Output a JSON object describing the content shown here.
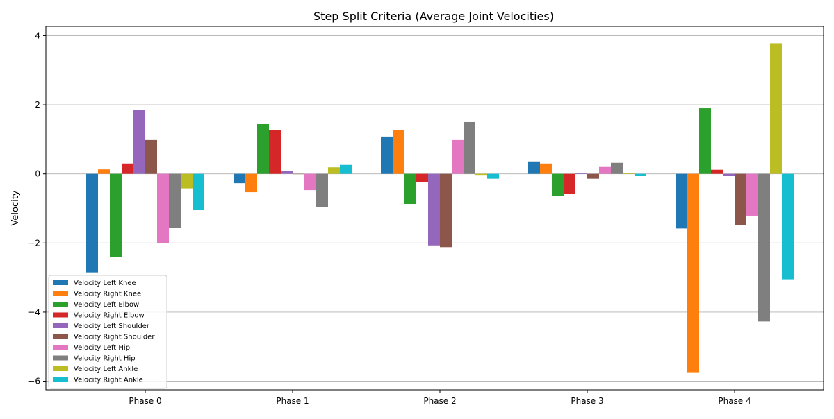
{
  "chart_data": {
    "type": "bar",
    "title": "Step Split Criteria (Average Joint Velocities)",
    "xlabel": "",
    "ylabel": "Velocity",
    "ylim": [
      -6.25,
      4.27
    ],
    "yticks": [
      -6,
      -4,
      -2,
      0,
      2,
      4
    ],
    "ytick_labels": [
      "−6",
      "−4",
      "−2",
      "0",
      "2",
      "4"
    ],
    "grid": "horizontal",
    "legend_placement": "lower-left",
    "categories": [
      "Phase 0",
      "Phase 1",
      "Phase 2",
      "Phase 3",
      "Phase 4"
    ],
    "series": [
      {
        "name": "Velocity Left Knee",
        "color": "#1f77b4",
        "values": [
          -2.85,
          -0.27,
          1.08,
          0.36,
          -1.58
        ]
      },
      {
        "name": "Velocity Right Knee",
        "color": "#ff7f0e",
        "values": [
          0.13,
          -0.53,
          1.26,
          0.3,
          -5.74
        ]
      },
      {
        "name": "Velocity Left Elbow",
        "color": "#2ca02c",
        "values": [
          -2.4,
          1.44,
          -0.87,
          -0.63,
          1.9
        ]
      },
      {
        "name": "Velocity Right Elbow",
        "color": "#d62728",
        "values": [
          0.3,
          1.26,
          -0.23,
          -0.57,
          0.12
        ]
      },
      {
        "name": "Velocity Left Shoulder",
        "color": "#9467bd",
        "values": [
          1.86,
          0.08,
          -2.07,
          0.03,
          -0.05
        ]
      },
      {
        "name": "Velocity Right Shoulder",
        "color": "#8c564b",
        "values": [
          0.98,
          0.0,
          -2.12,
          -0.14,
          -1.49
        ]
      },
      {
        "name": "Velocity Left Hip",
        "color": "#e377c2",
        "values": [
          -2.0,
          -0.47,
          0.98,
          0.2,
          -1.21
        ]
      },
      {
        "name": "Velocity Right Hip",
        "color": "#7f7f7f",
        "values": [
          -1.57,
          -0.95,
          1.5,
          0.32,
          -4.27
        ]
      },
      {
        "name": "Velocity Left Ankle",
        "color": "#bcbd22",
        "values": [
          -0.42,
          0.19,
          -0.03,
          0.02,
          3.78
        ]
      },
      {
        "name": "Velocity Right Ankle",
        "color": "#17becf",
        "values": [
          -1.05,
          0.26,
          -0.14,
          -0.05,
          -3.05
        ]
      }
    ]
  }
}
